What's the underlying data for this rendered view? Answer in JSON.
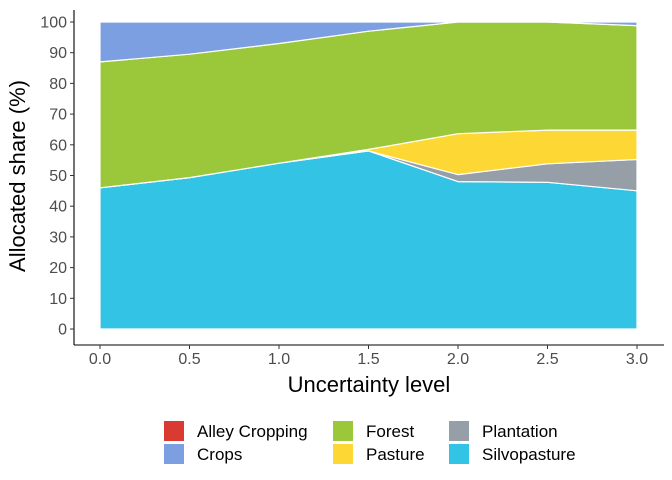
{
  "chart_data": {
    "type": "area",
    "stacked": true,
    "title": "",
    "xlabel": "Uncertainty level",
    "ylabel": "Allocated share (%)",
    "x": [
      0.0,
      0.5,
      1.0,
      1.5,
      2.0,
      2.5,
      3.0
    ],
    "x_ticks": [
      "0.0",
      "0.5",
      "1.0",
      "1.5",
      "2.0",
      "2.5",
      "3.0"
    ],
    "y_ticks": [
      "0",
      "10",
      "20",
      "30",
      "40",
      "50",
      "60",
      "70",
      "80",
      "90",
      "100"
    ],
    "xlim": [
      0,
      3
    ],
    "ylim": [
      0,
      100
    ],
    "grid": false,
    "legend_position": "bottom",
    "series": [
      {
        "name": "Silvopasture",
        "color": "#33C3E5",
        "values": [
          46,
          49.3,
          54,
          58,
          48,
          47.8,
          45
        ]
      },
      {
        "name": "Plantation",
        "color": "#969EA8",
        "values": [
          0,
          0,
          0,
          0,
          2.3,
          6,
          10.2
        ]
      },
      {
        "name": "Pasture",
        "color": "#FDD835",
        "values": [
          0,
          0,
          0,
          0.5,
          13.3,
          11,
          9.6
        ]
      },
      {
        "name": "Forest",
        "color": "#9AC83A",
        "values": [
          41,
          40.2,
          39,
          38.5,
          36.4,
          35.2,
          34
        ]
      },
      {
        "name": "Crops",
        "color": "#7C9FE2",
        "values": [
          13,
          10.5,
          7,
          3,
          0,
          0,
          1.2
        ]
      },
      {
        "name": "Alley Cropping",
        "color": "#D93A32",
        "values": [
          0,
          0,
          0,
          0,
          0,
          0,
          0
        ]
      }
    ],
    "legend_order": [
      "Alley Cropping",
      "Crops",
      "Forest",
      "Pasture",
      "Plantation",
      "Silvopasture"
    ]
  }
}
